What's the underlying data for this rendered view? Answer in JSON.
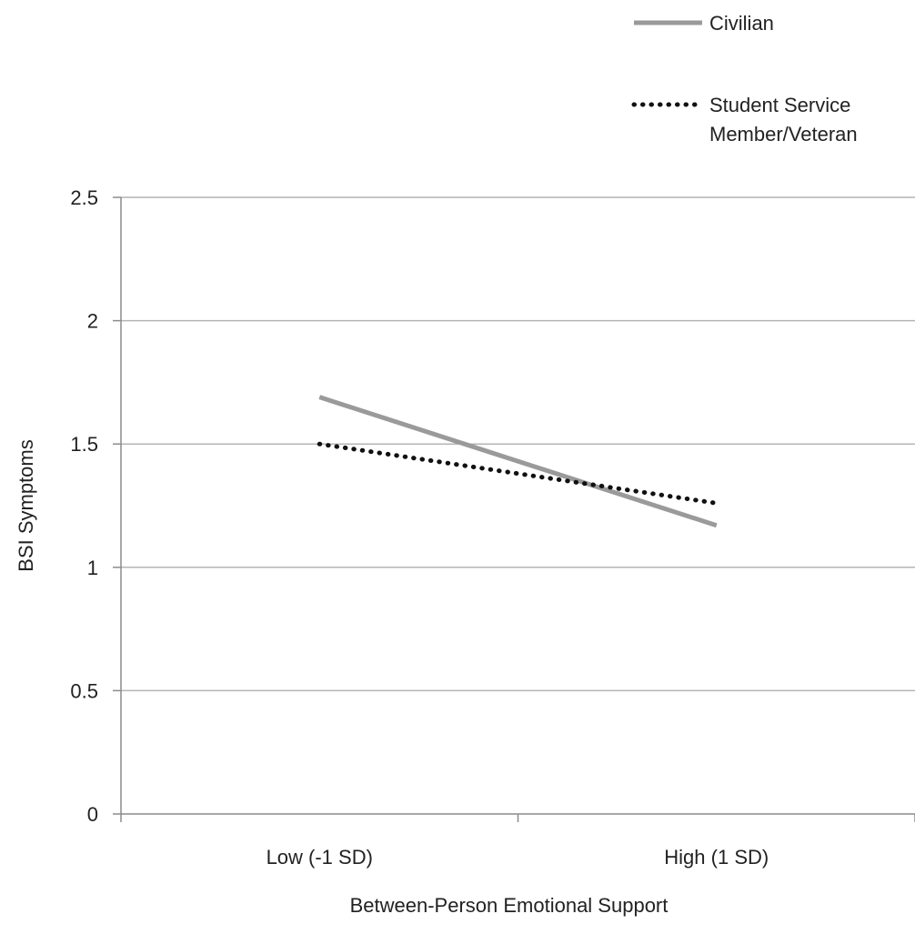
{
  "chart_data": {
    "type": "line",
    "categories": [
      "Low (-1 SD)",
      "High (1 SD)"
    ],
    "series": [
      {
        "name": "Civilian",
        "values": [
          1.69,
          1.17
        ],
        "color": "#9a9a9a",
        "style": "solid"
      },
      {
        "name": "Student Service Member/Veteran",
        "values": [
          1.5,
          1.26
        ],
        "color": "#111111",
        "style": "dotted"
      }
    ],
    "title": "",
    "xlabel": "Between-Person Emotional Support",
    "ylabel": "BSI Symptoms",
    "ylim": [
      0,
      2.5
    ],
    "yticks": [
      "0",
      "0.5",
      "1",
      "1.5",
      "2",
      "2.5"
    ],
    "grid": true,
    "legend_position": "top-right",
    "legend_lines": [
      [
        "Civilian"
      ],
      [
        "Student Service",
        "Member/Veteran"
      ]
    ]
  }
}
